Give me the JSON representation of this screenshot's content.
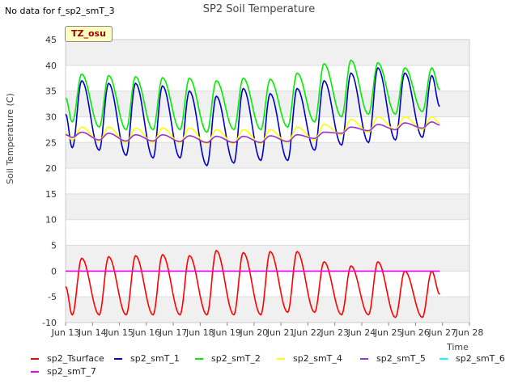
{
  "header": {
    "no_data_text": "No data for f_sp2_smT_3",
    "title": "SP2 Soil Temperature",
    "site_badge": "TZ_osu"
  },
  "chart_data": {
    "type": "line",
    "title": "SP2 Soil Temperature",
    "xlabel": "Time",
    "ylabel": "Soil Temperature (C)",
    "xlim_days": [
      13,
      28
    ],
    "ylim": [
      -10,
      45
    ],
    "yticks": [
      -10,
      -5,
      0,
      5,
      10,
      15,
      20,
      25,
      30,
      35,
      40,
      45
    ],
    "xticks": [
      "Jun 13",
      "Jun 14",
      "Jun 15",
      "Jun 16",
      "Jun 17",
      "Jun 18",
      "Jun 19",
      "Jun 20",
      "Jun 21",
      "Jun 22",
      "Jun 23",
      "Jun 24",
      "Jun 25",
      "Jun 26",
      "Jun 27",
      "Jun 28"
    ],
    "grid": true,
    "background_bands": "alternating light gray",
    "legend_position": "bottom",
    "daily_x": [
      13.25,
      14.25,
      15.25,
      16.25,
      17.25,
      18.25,
      19.25,
      20.25,
      21.25,
      22.25,
      23.25,
      24.25,
      25.25,
      26.25
    ],
    "daily_x_max": [
      13.6,
      14.6,
      15.6,
      16.6,
      17.6,
      18.6,
      19.6,
      20.6,
      21.6,
      22.6,
      23.6,
      24.6,
      25.6,
      26.6
    ],
    "series": [
      {
        "name": "sp2_Tsurface",
        "color": "#ff0000",
        "x_start": 13.0,
        "x_end": 26.9,
        "daily_min": [
          -8.5,
          -8.5,
          -8.5,
          -8.5,
          -8.5,
          -8.5,
          -8.5,
          -8.5,
          -8.0,
          -8.0,
          -8.5,
          -8.5,
          -9.0,
          -9.0
        ],
        "daily_max": [
          2.5,
          2.8,
          3.0,
          3.2,
          3.0,
          4.0,
          3.6,
          3.8,
          3.8,
          1.8,
          1.0,
          1.8,
          0.0,
          0.0
        ]
      },
      {
        "name": "sp2_smT_1",
        "color": "#0000cc",
        "x_start": 13.0,
        "x_end": 26.9,
        "daily_min": [
          24,
          23.5,
          22.5,
          22,
          22,
          20.5,
          21,
          21.5,
          21.5,
          23.5,
          24.5,
          25,
          25.5,
          26
        ],
        "daily_max": [
          37,
          36.5,
          36.5,
          36,
          35,
          34,
          35.5,
          34.5,
          35.5,
          37,
          38.5,
          39.5,
          38.5,
          38
        ]
      },
      {
        "name": "sp2_smT_2",
        "color": "#00ee00",
        "x_start": 13.0,
        "x_end": 26.9,
        "daily_min": [
          29,
          28,
          27.5,
          27.5,
          27.5,
          27,
          27.5,
          27.5,
          28,
          29,
          30,
          30.5,
          30.5,
          31
        ],
        "daily_max": [
          38.3,
          38,
          37.8,
          37.6,
          37.5,
          37,
          37.5,
          37.3,
          38.5,
          40.3,
          41,
          40.5,
          39.5,
          39.5
        ]
      },
      {
        "name": "sp2_smT_4",
        "color": "#ffff00",
        "x_start": 13.0,
        "x_end": 26.9,
        "daily_min": [
          25.5,
          25.3,
          25,
          25,
          25,
          24.8,
          24.8,
          24.8,
          25,
          25.5,
          26.5,
          27,
          27.5,
          27.5
        ],
        "daily_max": [
          28,
          28,
          27.8,
          27.8,
          27.8,
          27.5,
          27.5,
          27.5,
          28,
          28.5,
          29.5,
          30,
          30,
          30
        ]
      },
      {
        "name": "sp2_smT_5",
        "color": "#9a32cd",
        "x_start": 13.0,
        "x_end": 26.9,
        "daily_min": [
          26,
          25.5,
          25.3,
          25.3,
          25.2,
          25,
          25,
          25,
          25.2,
          25.8,
          26.8,
          27.3,
          27.5,
          27.8
        ],
        "daily_max": [
          27,
          26.8,
          26.5,
          26.5,
          26.3,
          26.2,
          26.2,
          26.3,
          26.5,
          27,
          28,
          28.5,
          28.8,
          29
        ]
      },
      {
        "name": "sp2_smT_6",
        "color": "#00ffff",
        "x_start": null,
        "x_end": null,
        "daily_min": [],
        "daily_max": []
      },
      {
        "name": "sp2_smT_7",
        "color": "#ee00ee",
        "x_start": 13.0,
        "x_end": 26.9,
        "daily_min": [
          0,
          0,
          0,
          0,
          0,
          0,
          0,
          0,
          0,
          0,
          0,
          0,
          0,
          0
        ],
        "daily_max": [
          0,
          0,
          0,
          0,
          0,
          0,
          0,
          0,
          0,
          0,
          0,
          0,
          0,
          0
        ]
      }
    ]
  }
}
